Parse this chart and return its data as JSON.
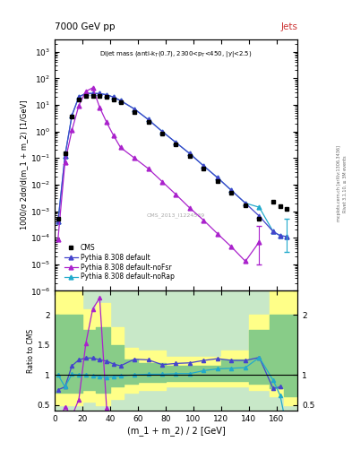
{
  "title_left": "7000 GeV pp",
  "title_right": "Jets",
  "annotation": "Dijet mass (anti-k$_{T}$(0.7), 2300<p$_{T}$<450, |y|<2.5)",
  "cms_label": "CMS_2013_I1224539",
  "xlabel": "(m_1 + m_2) / 2 [GeV]",
  "ylabel_main": "1000/σ 2dσ/d(m_1 + m_2) [1/GeV]",
  "ylabel_ratio": "Ratio to CMS",
  "rivet_label": "Rivet 3.1.10, ≥ 3M events",
  "arxiv_label": "[arXiv:1306.3436]",
  "xlim": [
    0,
    175
  ],
  "ylim_main": [
    1e-06,
    3000.0
  ],
  "ylim_ratio": [
    0.4,
    2.4
  ],
  "cms_x": [
    2.5,
    7.5,
    12.5,
    17.5,
    22.5,
    27.5,
    32.5,
    37.5,
    42.5,
    47.5,
    57.5,
    67.5,
    77.5,
    87.5,
    97.5,
    107.5,
    117.5,
    127.5,
    137.5,
    147.5,
    157.5,
    162.5,
    167.5
  ],
  "cms_y": [
    0.0005,
    0.15,
    3.5,
    16.0,
    21.0,
    21.0,
    21.0,
    19.5,
    16.0,
    12.5,
    5.5,
    2.2,
    0.85,
    0.32,
    0.12,
    0.04,
    0.014,
    0.0048,
    0.0016,
    0.0005,
    0.0022,
    0.0015,
    0.0012
  ],
  "py_default_x": [
    2.5,
    7.5,
    12.5,
    17.5,
    22.5,
    27.5,
    32.5,
    37.5,
    42.5,
    47.5,
    57.5,
    67.5,
    77.5,
    87.5,
    97.5,
    107.5,
    117.5,
    127.5,
    137.5,
    147.5,
    157.5,
    162.5,
    167.5
  ],
  "py_default_y": [
    0.0004,
    0.12,
    4.0,
    20.0,
    27.0,
    27.0,
    26.5,
    24.0,
    19.5,
    14.5,
    7.0,
    2.8,
    1.0,
    0.38,
    0.145,
    0.05,
    0.018,
    0.006,
    0.002,
    0.00065,
    0.00017,
    0.00012,
    0.00011
  ],
  "py_default_color": "#4444cc",
  "py_nofsr_x": [
    2.5,
    7.5,
    12.5,
    17.5,
    22.5,
    27.5,
    32.5,
    37.5,
    42.5,
    47.5,
    57.5,
    67.5,
    77.5,
    87.5,
    97.5,
    107.5,
    117.5,
    127.5,
    137.5,
    147.5
  ],
  "py_nofsr_y": [
    9e-05,
    0.07,
    1.1,
    9.5,
    32.0,
    44.0,
    8.0,
    2.2,
    0.7,
    0.25,
    0.1,
    0.04,
    0.013,
    0.0042,
    0.0013,
    0.00045,
    0.00014,
    4.5e-05,
    1.3e-05,
    7e-05
  ],
  "py_nofsr_color": "#aa22cc",
  "py_norap_x": [
    2.5,
    7.5,
    12.5,
    17.5,
    22.5,
    27.5,
    32.5,
    37.5,
    42.5,
    47.5,
    57.5,
    67.5,
    77.5,
    87.5,
    97.5,
    107.5,
    117.5,
    127.5,
    137.5,
    147.5,
    157.5,
    162.5,
    167.5
  ],
  "py_norap_y": [
    0.0004,
    0.12,
    4.0,
    20.0,
    27.0,
    27.0,
    26.5,
    24.0,
    19.5,
    14.5,
    7.0,
    2.8,
    1.0,
    0.38,
    0.145,
    0.05,
    0.018,
    0.006,
    0.002,
    0.0014,
    0.00017,
    0.00012,
    0.00011
  ],
  "py_norap_color": "#22aacc",
  "py_nofsr_err_x": [
    147.5
  ],
  "py_nofsr_err_lo": [
    3e-05
  ],
  "py_nofsr_err_hi": [
    0.0003
  ],
  "py_norap_err_x": [
    167.5
  ],
  "py_norap_err_lo": [
    3e-05
  ],
  "py_norap_err_hi": [
    0.0005
  ],
  "ratio_default_x": [
    2.5,
    7.5,
    12.5,
    17.5,
    22.5,
    27.5,
    32.5,
    37.5,
    42.5,
    47.5,
    57.5,
    67.5,
    77.5,
    87.5,
    97.5,
    107.5,
    117.5,
    127.5,
    137.5,
    147.5,
    157.5,
    162.5
  ],
  "ratio_default_y": [
    0.75,
    0.8,
    1.15,
    1.25,
    1.28,
    1.28,
    1.25,
    1.23,
    1.18,
    1.15,
    1.26,
    1.25,
    1.17,
    1.19,
    1.2,
    1.24,
    1.27,
    1.24,
    1.24,
    1.29,
    0.77,
    0.8
  ],
  "ratio_default_color": "#4444cc",
  "ratio_nofsr_x": [
    2.5,
    7.5,
    12.5,
    17.5,
    22.5,
    27.5,
    32.5,
    37.5,
    42.5,
    47.5,
    57.5
  ],
  "ratio_nofsr_y": [
    0.18,
    0.47,
    0.31,
    0.59,
    1.52,
    2.1,
    2.28,
    0.45,
    0.044,
    0.02,
    0.018
  ],
  "ratio_nofsr_color": "#aa22cc",
  "ratio_norap_x": [
    2.5,
    7.5,
    12.5,
    17.5,
    22.5,
    27.5,
    32.5,
    37.5,
    42.5,
    47.5,
    57.5,
    67.5,
    77.5,
    87.5,
    97.5,
    107.5,
    117.5,
    127.5,
    137.5,
    147.5,
    157.5,
    162.5,
    167.5
  ],
  "ratio_norap_y": [
    1.0,
    0.8,
    1.01,
    1.0,
    1.0,
    0.99,
    0.97,
    0.96,
    0.97,
    0.98,
    1.0,
    1.01,
    1.01,
    1.02,
    1.02,
    1.07,
    1.1,
    1.11,
    1.12,
    1.29,
    0.91,
    0.66,
    0.1
  ],
  "ratio_norap_color": "#22aacc",
  "band_edges": [
    0,
    5,
    10,
    20,
    30,
    40,
    50,
    60,
    80,
    100,
    120,
    140,
    155,
    165,
    175
  ],
  "band_yellow_lo": [
    0.5,
    0.5,
    0.5,
    0.55,
    0.5,
    0.6,
    0.7,
    0.75,
    0.8,
    0.8,
    0.8,
    0.75,
    0.65,
    0.5,
    0.5
  ],
  "band_yellow_hi": [
    2.4,
    2.4,
    2.4,
    2.1,
    2.2,
    1.8,
    1.45,
    1.4,
    1.3,
    1.3,
    1.4,
    2.0,
    2.4,
    2.4,
    2.4
  ],
  "band_green_lo": [
    0.7,
    0.7,
    0.7,
    0.75,
    0.7,
    0.8,
    0.85,
    0.88,
    0.9,
    0.9,
    0.9,
    0.85,
    0.78,
    0.65,
    0.65
  ],
  "band_green_hi": [
    2.0,
    2.0,
    2.0,
    1.75,
    1.8,
    1.5,
    1.25,
    1.2,
    1.15,
    1.15,
    1.25,
    1.75,
    2.0,
    2.0,
    2.0
  ],
  "background_color": "#ffffff"
}
